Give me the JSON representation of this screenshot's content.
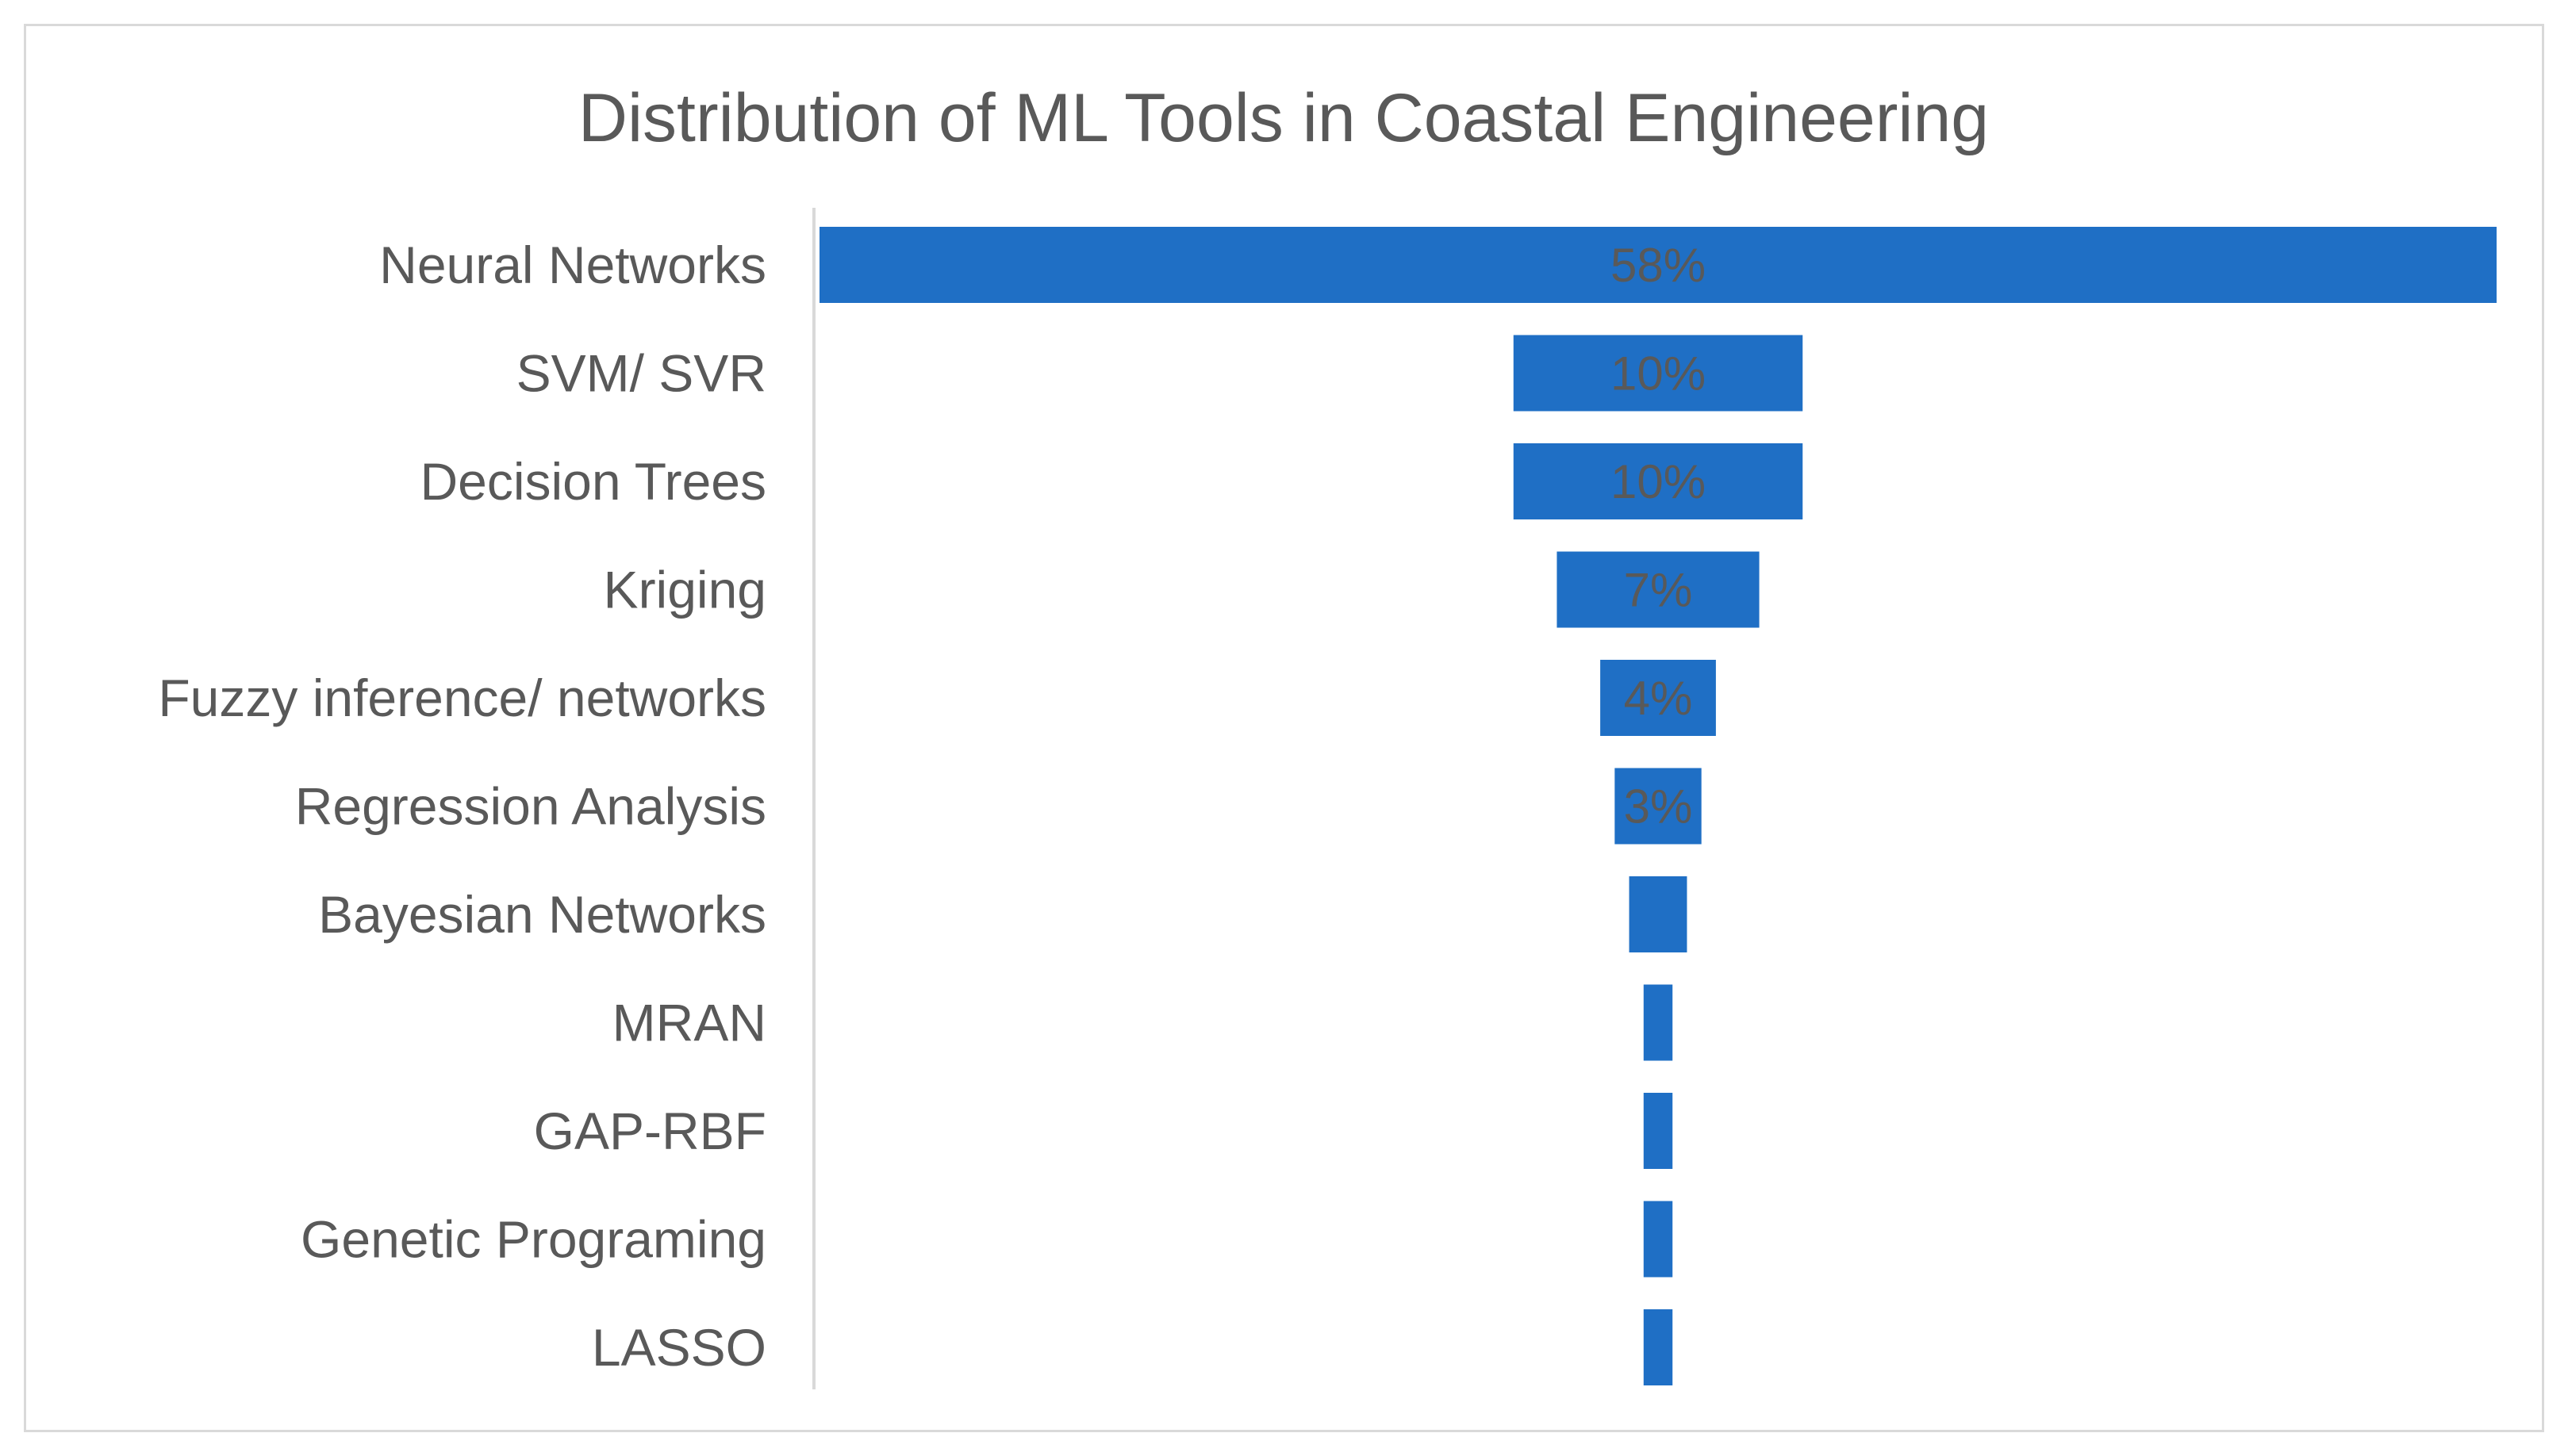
{
  "chart_data": {
    "type": "bar",
    "orientation": "horizontal",
    "layout": "funnel",
    "title": "Distribution of ML Tools in Coastal Engineering",
    "categories": [
      "Neural Networks",
      "SVM/ SVR",
      "Decision Trees",
      "Kriging",
      "Fuzzy inference/ networks",
      "Regression Analysis",
      "Bayesian Networks",
      "MRAN",
      "GAP-RBF",
      "Genetic Programing",
      "LASSO"
    ],
    "values": [
      58,
      10,
      10,
      7,
      4,
      3,
      2,
      1,
      1,
      1,
      1
    ],
    "data_labels": [
      "58%",
      "10%",
      "10%",
      "7%",
      "4%",
      "3%",
      "",
      "",
      "",
      "",
      ""
    ],
    "unit": "%",
    "xlabel": "",
    "ylabel": "",
    "grid": false,
    "legend": false,
    "bar_color": "#1F6FC5",
    "text_color": "#595959",
    "axis_color": "#d9d9d9"
  }
}
